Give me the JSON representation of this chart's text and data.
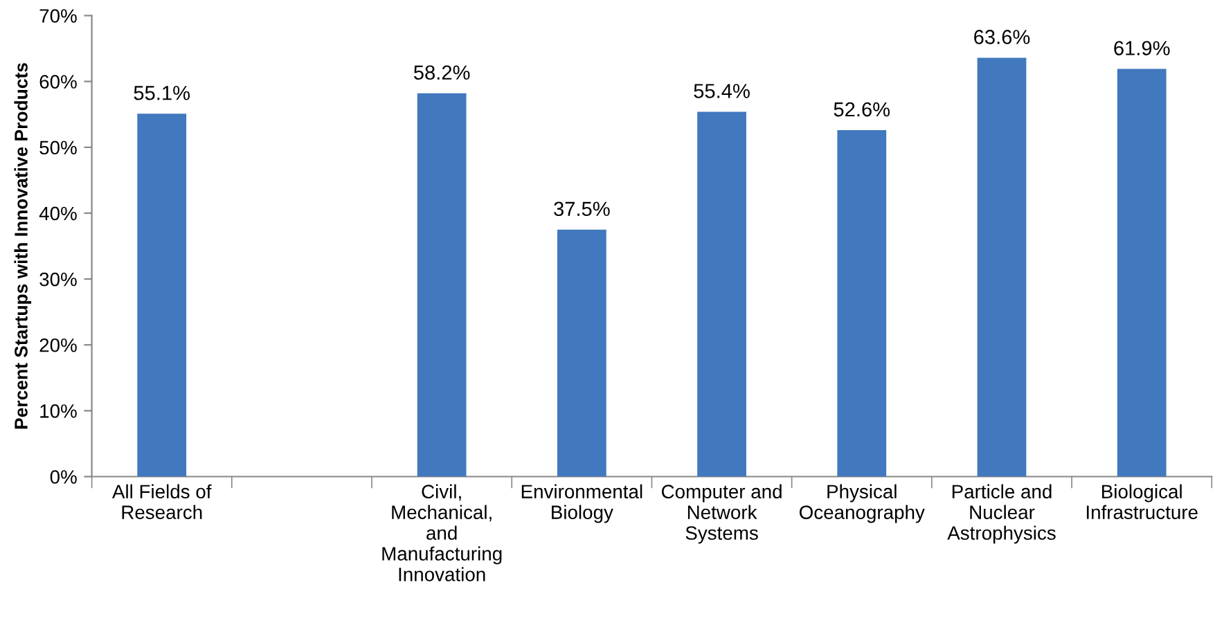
{
  "chart_data": {
    "type": "bar",
    "ylabel": "Percent Startups with Innovative Products",
    "categories": [
      "All Fields of Research",
      null,
      "Civil, Mechanical, and Manufacturing Innovation",
      "Environmental Biology",
      "Computer and Network Systems",
      "Physical Oceanography",
      "Particle and Nuclear Astrophysics",
      "Biological Infrastructure"
    ],
    "values": [
      55.1,
      null,
      58.2,
      37.5,
      55.4,
      52.6,
      63.6,
      61.9
    ],
    "value_labels": [
      "55.1%",
      null,
      "58.2%",
      "37.5%",
      "55.4%",
      "52.6%",
      "63.6%",
      "61.9%"
    ],
    "color": "#4178be",
    "ylim": [
      0,
      70
    ],
    "yticks": [
      {
        "value": 0,
        "label": "0%"
      },
      {
        "value": 10,
        "label": "10%"
      },
      {
        "value": 20,
        "label": "20%"
      },
      {
        "value": 30,
        "label": "30%"
      },
      {
        "value": 40,
        "label": "40%"
      },
      {
        "value": 50,
        "label": "50%"
      },
      {
        "value": 60,
        "label": "60%"
      },
      {
        "value": 70,
        "label": "70%"
      }
    ],
    "grid": false,
    "legend": false
  }
}
